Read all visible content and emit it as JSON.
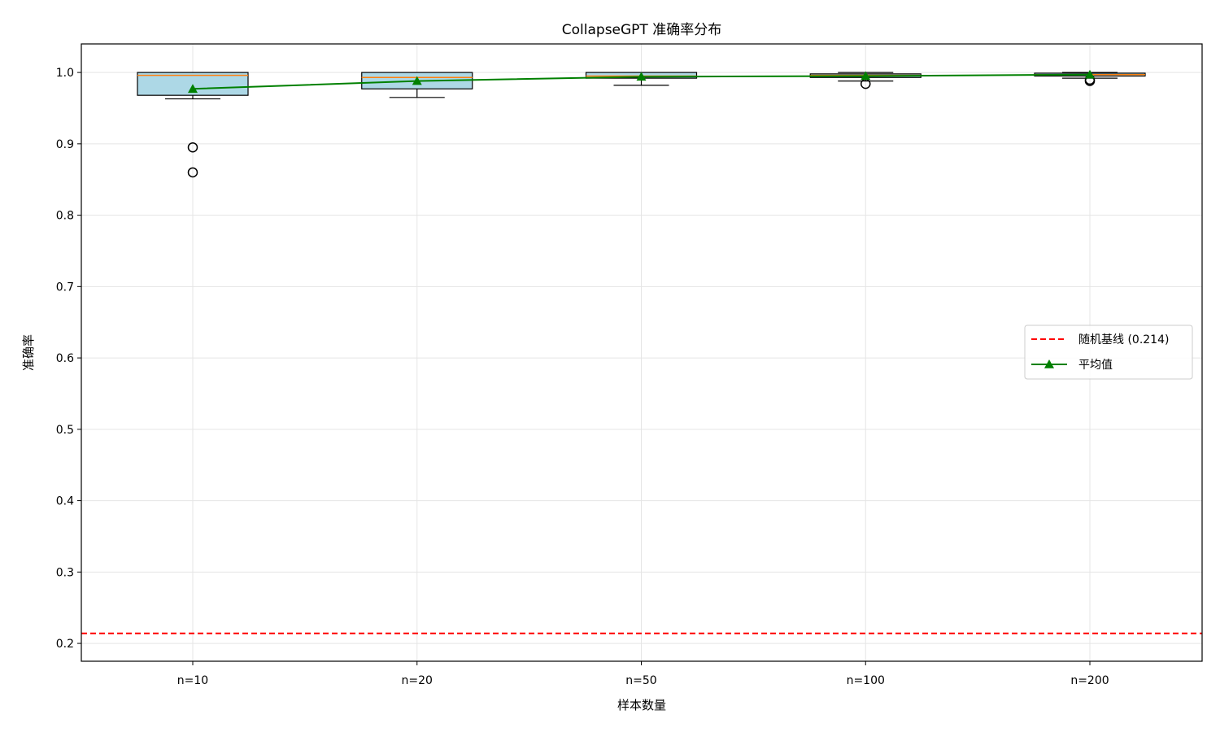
{
  "chart_data": {
    "type": "box",
    "title": "CollapseGPT 准确率分布",
    "xlabel": "样本数量",
    "ylabel": "准确率",
    "categories": [
      "n=10",
      "n=20",
      "n=50",
      "n=100",
      "n=200"
    ],
    "ylim": [
      0.175,
      1.04
    ],
    "yticks": [
      0.2,
      0.3,
      0.4,
      0.5,
      0.6,
      0.7,
      0.8,
      0.9,
      1.0
    ],
    "ytick_labels": [
      "0.2",
      "0.3",
      "0.4",
      "0.5",
      "0.6",
      "0.7",
      "0.8",
      "0.9",
      "1.0"
    ],
    "grid": true,
    "legend_position": "center-right",
    "boxes": [
      {
        "category": "n=10",
        "whisker_low": 0.963,
        "q1": 0.968,
        "median": 0.996,
        "q3": 1.0,
        "whisker_high": 1.0,
        "outliers": [
          0.895,
          0.86
        ]
      },
      {
        "category": "n=20",
        "whisker_low": 0.965,
        "q1": 0.977,
        "median": 0.993,
        "q3": 1.0,
        "whisker_high": 1.0,
        "outliers": []
      },
      {
        "category": "n=50",
        "whisker_low": 0.982,
        "q1": 0.992,
        "median": 0.995,
        "q3": 1.0,
        "whisker_high": 1.0,
        "outliers": []
      },
      {
        "category": "n=100",
        "whisker_low": 0.988,
        "q1": 0.993,
        "median": 0.996,
        "q3": 0.998,
        "whisker_high": 1.0,
        "outliers": [
          0.984
        ]
      },
      {
        "category": "n=200",
        "whisker_low": 0.992,
        "q1": 0.995,
        "median": 0.997,
        "q3": 0.999,
        "whisker_high": 1.0,
        "outliers": [
          0.988,
          0.99
        ]
      }
    ],
    "series": [
      {
        "name": "平均值",
        "type": "line",
        "marker": "triangle",
        "values": [
          0.977,
          0.988,
          0.994,
          0.995,
          0.997
        ]
      }
    ],
    "reference_line": {
      "label": "随机基线 (0.214)",
      "value": 0.214
    },
    "colors": {
      "box_fill": "#add8e6",
      "box_edge": "#000000",
      "median": "#ff7f0e",
      "mean_line": "#008000",
      "reference": "#ff0000",
      "grid": "#e5e5e5"
    }
  }
}
